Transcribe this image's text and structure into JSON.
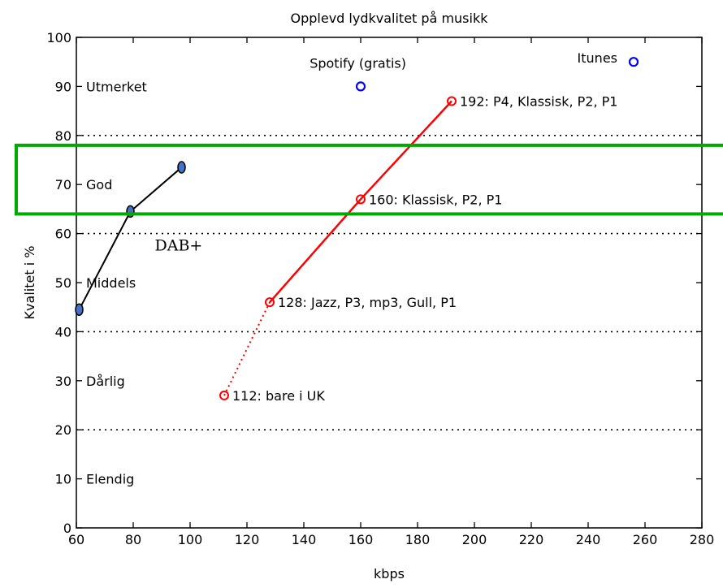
{
  "chart_data": {
    "type": "scatter",
    "title": "Opplevd lydkvalitet på musikk",
    "xlabel": "kbps",
    "ylabel": "Kvalitet i %",
    "xlim": [
      60,
      280
    ],
    "ylim": [
      0,
      100
    ],
    "xticks": [
      60,
      80,
      100,
      120,
      140,
      160,
      180,
      200,
      220,
      240,
      260,
      280
    ],
    "yticks": [
      0,
      10,
      20,
      30,
      40,
      50,
      60,
      70,
      80,
      90,
      100
    ],
    "grid": "dotted horizontal lines at 20, 40, 60, 80",
    "quality_labels": [
      {
        "text": "Utmerket",
        "y": 90
      },
      {
        "text": "God",
        "y": 70
      },
      {
        "text": "Middels",
        "y": 50
      },
      {
        "text": "Dårlig",
        "y": 30
      },
      {
        "text": "Elendig",
        "y": 10
      }
    ],
    "series": [
      {
        "name": "",
        "color": "#ff0000",
        "style": "solid line with open circle markers",
        "points": [
          {
            "x": 128,
            "y": 46,
            "label": "128: Jazz, P3, mp3, Gull, P1"
          },
          {
            "x": 160,
            "y": 67,
            "label": "160: Klassisk, P2, P1"
          },
          {
            "x": 192,
            "y": 87,
            "label": "192: P4, Klassisk, P2, P1"
          }
        ]
      },
      {
        "name": "",
        "color": "#ff0000",
        "style": "dotted line with open circle marker",
        "points": [
          {
            "x": 112,
            "y": 27,
            "label": "112: bare i UK"
          },
          {
            "x": 128,
            "y": 46,
            "label": ""
          }
        ]
      },
      {
        "name": "",
        "color": "#0000ff",
        "style": "open circle markers",
        "points": [
          {
            "x": 160,
            "y": 90,
            "label": "Spotify (gratis)"
          },
          {
            "x": 256,
            "y": 95,
            "label": "Itunes"
          }
        ]
      },
      {
        "name": "DAB+",
        "color": "#000000",
        "marker_fill": "#4472c4",
        "style": "solid line with filled ellipse markers",
        "points": [
          {
            "x": 61,
            "y": 44.5
          },
          {
            "x": 79,
            "y": 64.5
          },
          {
            "x": 97,
            "y": 73.5
          }
        ]
      }
    ],
    "annotation": {
      "type": "rectangle",
      "color": "#00aa00",
      "y_range": [
        64,
        78
      ]
    }
  }
}
